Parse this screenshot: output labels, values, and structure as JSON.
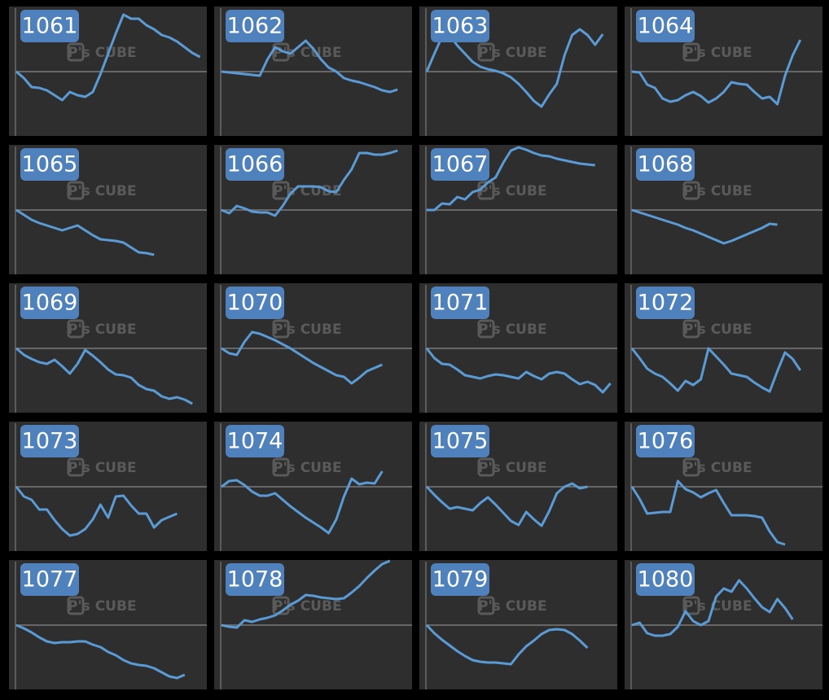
{
  "watermark": "P's CUBE",
  "chart_data": [
    {
      "type": "line",
      "title": "1061",
      "color": "#5b9bd5",
      "xlim": [
        0,
        24
      ],
      "ylim": [
        -79,
        80
      ],
      "values": [
        0,
        -8,
        -19,
        -20,
        -23,
        -29,
        -35,
        -25,
        -29,
        -31,
        -25,
        -3,
        22,
        47,
        70,
        65,
        65,
        57,
        52,
        45,
        42,
        37,
        30,
        23,
        18
      ]
    },
    {
      "type": "line",
      "title": "1062",
      "color": "#5b9bd5",
      "xlim": [
        0,
        24
      ],
      "ylim": [
        -79,
        80
      ],
      "values": [
        0,
        -1,
        -2,
        -3,
        -4,
        -5,
        15,
        30,
        25,
        22,
        30,
        38,
        28,
        15,
        5,
        0,
        -8,
        -11,
        -13,
        -16,
        -19,
        -23,
        -25,
        -22
      ]
    },
    {
      "type": "line",
      "title": "1063",
      "color": "#5b9bd5",
      "xlim": [
        0,
        24
      ],
      "ylim": [
        -79,
        80
      ],
      "values": [
        0,
        22,
        43,
        45,
        32,
        22,
        12,
        6,
        3,
        1,
        -2,
        -7,
        -15,
        -25,
        -36,
        -43,
        -28,
        -15,
        20,
        45,
        52,
        45,
        33,
        46
      ]
    },
    {
      "type": "line",
      "title": "1064",
      "color": "#5b9bd5",
      "xlim": [
        0,
        24
      ],
      "ylim": [
        -79,
        80
      ],
      "values": [
        0,
        -1,
        -16,
        -20,
        -33,
        -37,
        -35,
        -29,
        -25,
        -30,
        -38,
        -33,
        -25,
        -13,
        -15,
        -16,
        -25,
        -33,
        -31,
        -40,
        -5,
        20,
        39
      ]
    },
    {
      "type": "line",
      "title": "1065",
      "color": "#5b9bd5",
      "xlim": [
        0,
        24
      ],
      "ylim": [
        -79,
        80
      ],
      "values": [
        0,
        -6,
        -12,
        -16,
        -19,
        -22,
        -25,
        -22,
        -19,
        -25,
        -31,
        -36,
        -37,
        -38,
        -40,
        -46,
        -52,
        -53,
        -55
      ]
    },
    {
      "type": "line",
      "title": "1066",
      "color": "#5b9bd5",
      "xlim": [
        0,
        24
      ],
      "ylim": [
        -79,
        80
      ],
      "values": [
        0,
        -4,
        5,
        2,
        -2,
        -3,
        -3,
        -7,
        5,
        20,
        29,
        29,
        29,
        28,
        23,
        22,
        37,
        50,
        70,
        70,
        68,
        68,
        70,
        73
      ]
    },
    {
      "type": "line",
      "title": "1067",
      "color": "#5b9bd5",
      "xlim": [
        0,
        24
      ],
      "ylim": [
        -79,
        80
      ],
      "values": [
        0,
        0,
        8,
        7,
        16,
        13,
        22,
        25,
        34,
        40,
        58,
        73,
        77,
        74,
        70,
        67,
        66,
        63,
        61,
        59,
        57,
        56,
        55
      ]
    },
    {
      "type": "line",
      "title": "1068",
      "color": "#5b9bd5",
      "xlim": [
        0,
        24
      ],
      "ylim": [
        -79,
        80
      ],
      "values": [
        0,
        -3,
        -6,
        -9,
        -12,
        -15,
        -18,
        -22,
        -25,
        -29,
        -33,
        -37,
        -41,
        -38,
        -34,
        -30,
        -26,
        -22,
        -17,
        -18
      ]
    },
    {
      "type": "line",
      "title": "1069",
      "color": "#5b9bd5",
      "xlim": [
        0,
        24
      ],
      "ylim": [
        -79,
        80
      ],
      "values": [
        0,
        -8,
        -13,
        -17,
        -19,
        -14,
        -22,
        -31,
        -19,
        -2,
        -9,
        -17,
        -26,
        -32,
        -33,
        -36,
        -45,
        -50,
        -52,
        -59,
        -62,
        -60,
        -63,
        -68
      ]
    },
    {
      "type": "line",
      "title": "1070",
      "color": "#5b9bd5",
      "xlim": [
        0,
        24
      ],
      "ylim": [
        -79,
        80
      ],
      "values": [
        0,
        -6,
        -8,
        8,
        20,
        18,
        14,
        10,
        5,
        0,
        -6,
        -12,
        -18,
        -23,
        -28,
        -33,
        -35,
        -43,
        -36,
        -28,
        -24,
        -20
      ]
    },
    {
      "type": "line",
      "title": "1071",
      "color": "#5b9bd5",
      "xlim": [
        0,
        24
      ],
      "ylim": [
        -79,
        80
      ],
      "values": [
        0,
        -12,
        -19,
        -20,
        -26,
        -33,
        -35,
        -37,
        -34,
        -32,
        -33,
        -35,
        -37,
        -29,
        -34,
        -38,
        -31,
        -29,
        -31,
        -38,
        -44,
        -41,
        -45,
        -54,
        -43
      ]
    },
    {
      "type": "line",
      "title": "1072",
      "color": "#5b9bd5",
      "xlim": [
        0,
        24
      ],
      "ylim": [
        -79,
        80
      ],
      "values": [
        0,
        -12,
        -25,
        -31,
        -35,
        -43,
        -52,
        -40,
        -45,
        -38,
        0,
        -10,
        -20,
        -31,
        -33,
        -35,
        -42,
        -48,
        -53,
        -28,
        -5,
        -13,
        -27
      ]
    },
    {
      "type": "line",
      "title": "1073",
      "color": "#5b9bd5",
      "xlim": [
        0,
        24
      ],
      "ylim": [
        -79,
        80
      ],
      "values": [
        0,
        -12,
        -16,
        -28,
        -28,
        -41,
        -52,
        -60,
        -58,
        -52,
        -40,
        -22,
        -38,
        -12,
        -11,
        -23,
        -33,
        -33,
        -50,
        -41,
        -37,
        -33
      ]
    },
    {
      "type": "line",
      "title": "1074",
      "color": "#5b9bd5",
      "xlim": [
        0,
        24
      ],
      "ylim": [
        -79,
        80
      ],
      "values": [
        0,
        7,
        8,
        2,
        -6,
        -11,
        -11,
        -8,
        -16,
        -24,
        -31,
        -38,
        -44,
        -50,
        -57,
        -40,
        -12,
        10,
        3,
        5,
        4,
        19
      ]
    },
    {
      "type": "line",
      "title": "1075",
      "color": "#5b9bd5",
      "xlim": [
        0,
        24
      ],
      "ylim": [
        -79,
        80
      ],
      "values": [
        0,
        -10,
        -19,
        -27,
        -25,
        -27,
        -29,
        -20,
        -13,
        -22,
        -32,
        -42,
        -47,
        -31,
        -40,
        -48,
        -30,
        -8,
        0,
        4,
        -2,
        0
      ]
    },
    {
      "type": "line",
      "title": "1076",
      "color": "#5b9bd5",
      "xlim": [
        0,
        24
      ],
      "ylim": [
        -79,
        80
      ],
      "values": [
        0,
        -15,
        -33,
        -32,
        -31,
        -31,
        7,
        -3,
        -7,
        -13,
        -8,
        -4,
        -20,
        -35,
        -35,
        -35,
        -36,
        -38,
        -55,
        -68,
        -71
      ]
    },
    {
      "type": "line",
      "title": "1077",
      "color": "#5b9bd5",
      "xlim": [
        0,
        24
      ],
      "ylim": [
        -79,
        80
      ],
      "values": [
        0,
        -4,
        -9,
        -15,
        -20,
        -22,
        -21,
        -21,
        -20,
        -20,
        -24,
        -27,
        -33,
        -37,
        -43,
        -47,
        -49,
        -50,
        -53,
        -58,
        -63,
        -65,
        -61
      ]
    },
    {
      "type": "line",
      "title": "1078",
      "color": "#5b9bd5",
      "xlim": [
        0,
        24
      ],
      "ylim": [
        -79,
        80
      ],
      "values": [
        0,
        -2,
        -3,
        6,
        4,
        7,
        9,
        12,
        18,
        25,
        30,
        37,
        36,
        34,
        33,
        32,
        33,
        40,
        48,
        58,
        67,
        75,
        79
      ]
    },
    {
      "type": "line",
      "title": "1079",
      "color": "#5b9bd5",
      "xlim": [
        0,
        24
      ],
      "ylim": [
        -79,
        80
      ],
      "values": [
        0,
        -10,
        -18,
        -25,
        -32,
        -38,
        -43,
        -45,
        -46,
        -46,
        -47,
        -48,
        -36,
        -26,
        -19,
        -11,
        -6,
        -5,
        -6,
        -11,
        -19,
        -28
      ]
    },
    {
      "type": "line",
      "title": "1080",
      "color": "#5b9bd5",
      "xlim": [
        0,
        24
      ],
      "ylim": [
        -79,
        80
      ],
      "values": [
        0,
        3,
        -10,
        -13,
        -13,
        -11,
        -2,
        17,
        5,
        0,
        5,
        35,
        45,
        41,
        55,
        45,
        33,
        22,
        16,
        32,
        21,
        7
      ]
    }
  ]
}
